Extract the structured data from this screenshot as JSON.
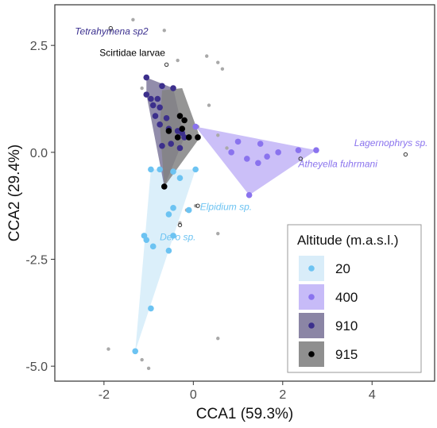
{
  "chart_data": {
    "type": "scatter",
    "title": "",
    "xlabel": "CCA1 (59.3%)",
    "ylabel": "CCA2 (29.4%)",
    "xlim": [
      -3.1,
      5.4
    ],
    "ylim": [
      -5.35,
      3.45
    ],
    "x_ticks": [
      -2,
      0,
      2,
      4
    ],
    "x_tick_labels": [
      "-2",
      "0",
      "2",
      "4"
    ],
    "y_ticks": [
      2.5,
      0.0,
      -2.5,
      -5.0
    ],
    "y_tick_labels": [
      "2.5",
      "0.0",
      "-2.5",
      "-5.0"
    ],
    "grid": false,
    "legend": {
      "title": "Altitude (m.a.s.l.)",
      "placement": "bottom-right",
      "entries": [
        "20",
        "400",
        "910",
        "915"
      ]
    },
    "series": [
      {
        "name": "20",
        "color": "#6cc3f2",
        "fill": "#cfe9f8",
        "points": [
          [
            -1.3,
            -4.65
          ],
          [
            -0.95,
            -3.65
          ],
          [
            -1.05,
            -2.05
          ],
          [
            -1.1,
            -1.95
          ],
          [
            -0.9,
            -2.2
          ],
          [
            -0.55,
            -2.3
          ],
          [
            -0.45,
            -1.95
          ],
          [
            -0.55,
            -1.45
          ],
          [
            -0.45,
            -1.3
          ],
          [
            -0.1,
            -1.35
          ],
          [
            -0.3,
            -0.6
          ],
          [
            -0.95,
            -0.4
          ],
          [
            -0.75,
            -0.4
          ],
          [
            -0.45,
            -0.45
          ],
          [
            0.05,
            -0.4
          ]
        ]
      },
      {
        "name": "400",
        "color": "#8a73ee",
        "fill": "#b9aaf6",
        "points": [
          [
            0.05,
            0.6
          ],
          [
            1.25,
            -1.0
          ],
          [
            1.0,
            0.25
          ],
          [
            1.2,
            -0.15
          ],
          [
            1.45,
            -0.25
          ],
          [
            1.5,
            0.2
          ],
          [
            1.65,
            -0.1
          ],
          [
            1.9,
            0.0
          ],
          [
            2.35,
            0.05
          ],
          [
            2.75,
            0.05
          ],
          [
            0.85,
            0.0
          ]
        ]
      },
      {
        "name": "910",
        "color": "#3c2f8c",
        "fill": "#6e678f",
        "points": [
          [
            -1.05,
            1.75
          ],
          [
            -0.7,
            1.55
          ],
          [
            -0.45,
            1.5
          ],
          [
            -1.05,
            1.35
          ],
          [
            -0.95,
            1.25
          ],
          [
            -0.8,
            1.25
          ],
          [
            -0.9,
            1.1
          ],
          [
            -0.75,
            1.05
          ],
          [
            -0.85,
            0.85
          ],
          [
            -0.6,
            0.8
          ],
          [
            -0.75,
            0.65
          ],
          [
            -0.55,
            0.55
          ],
          [
            -0.35,
            0.5
          ],
          [
            -0.25,
            0.45
          ],
          [
            -0.5,
            0.2
          ],
          [
            -0.7,
            0.15
          ],
          [
            -0.3,
            0.1
          ],
          [
            -0.2,
            0.35
          ]
        ]
      },
      {
        "name": "915",
        "color": "#000000",
        "fill": "#838383",
        "points": [
          [
            -0.3,
            0.85
          ],
          [
            -0.2,
            0.75
          ],
          [
            -0.25,
            0.55
          ],
          [
            -0.1,
            0.35
          ],
          [
            -0.35,
            0.35
          ],
          [
            -0.55,
            0.5
          ],
          [
            0.1,
            0.35
          ],
          [
            -0.65,
            -0.8
          ]
        ]
      }
    ],
    "hulls": [
      {
        "group": "20",
        "points": [
          [
            -1.3,
            -4.65
          ],
          [
            0.05,
            -0.4
          ],
          [
            -0.95,
            -0.4
          ]
        ]
      },
      {
        "group": "400",
        "points": [
          [
            0.05,
            0.6
          ],
          [
            2.75,
            0.05
          ],
          [
            1.25,
            -1.0
          ]
        ]
      },
      {
        "group": "910",
        "points": [
          [
            -1.05,
            1.75
          ],
          [
            -0.45,
            1.5
          ],
          [
            -0.2,
            0.35
          ],
          [
            -0.65,
            -0.8
          ],
          [
            -1.05,
            1.35
          ]
        ]
      },
      {
        "group": "915",
        "points": [
          [
            -0.7,
            1.45
          ],
          [
            -0.25,
            1.5
          ],
          [
            0.15,
            0.35
          ],
          [
            -0.65,
            -0.8
          ],
          [
            -0.75,
            0.65
          ]
        ]
      }
    ],
    "gray_points": [
      [
        -1.35,
        3.1
      ],
      [
        -1.85,
        2.85
      ],
      [
        -0.65,
        2.85
      ],
      [
        0.3,
        2.25
      ],
      [
        0.55,
        2.1
      ],
      [
        0.65,
        1.95
      ],
      [
        -0.35,
        2.15
      ],
      [
        -1.15,
        1.5
      ],
      [
        0.35,
        1.1
      ],
      [
        0.1,
        0.6
      ],
      [
        0.55,
        0.4
      ],
      [
        0.75,
        0.1
      ],
      [
        -1.9,
        -4.6
      ],
      [
        -1.15,
        -4.85
      ],
      [
        -1.0,
        -5.05
      ],
      [
        0.55,
        -4.35
      ],
      [
        0.55,
        -1.9
      ],
      [
        0.05,
        -1.25
      ],
      [
        -0.15,
        -1.35
      ],
      [
        -0.3,
        -1.65
      ]
    ],
    "species_points": [
      [
        -1.85,
        2.9
      ],
      [
        -0.6,
        2.05
      ],
      [
        0.1,
        -1.25
      ],
      [
        -0.3,
        -1.7
      ],
      [
        2.4,
        -0.15
      ],
      [
        4.75,
        -0.05
      ]
    ],
    "annotations": [
      {
        "text": "Tetrahymena sp2",
        "x": -2.65,
        "y": 2.75,
        "color": "#3a2f8f",
        "italic": true
      },
      {
        "text": "Scirtidae larvae",
        "x": -2.1,
        "y": 2.25,
        "color": "#000000",
        "italic": false
      },
      {
        "text": "Lagernophrys sp.",
        "x": 3.6,
        "y": 0.15,
        "color": "#8a73ee",
        "italic": true
      },
      {
        "text": "Atheyella fuhrmani",
        "x": 2.35,
        "y": -0.35,
        "color": "#8a73ee",
        "italic": true
      },
      {
        "text": "Elpidium sp.",
        "x": 0.15,
        "y": -1.35,
        "color": "#6cc3f2",
        "italic": true
      },
      {
        "text": "Dero sp.",
        "x": -0.75,
        "y": -2.05,
        "color": "#6cc3f2",
        "italic": true
      }
    ]
  }
}
